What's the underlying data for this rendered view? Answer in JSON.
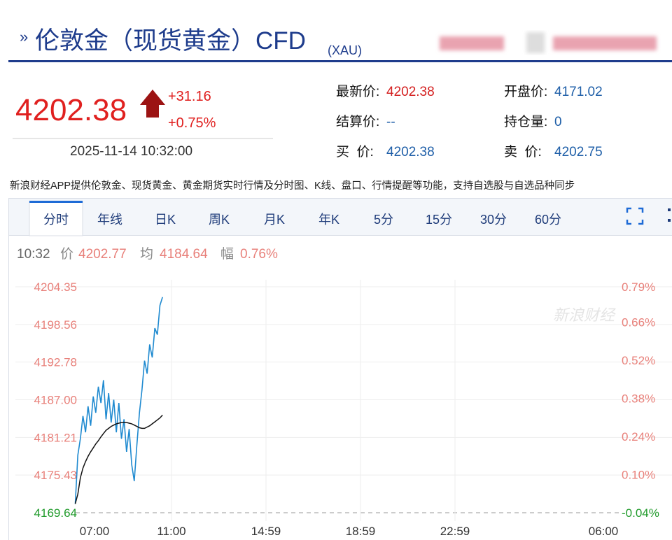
{
  "header": {
    "title": "伦敦金（现货黄金）CFD",
    "symbol": "(XAU)"
  },
  "quote": {
    "price": "4202.38",
    "change": "+31.16",
    "change_pct": "+0.75%",
    "datetime": "2025-11-14 10:32:00",
    "fields": [
      {
        "label": "最新价:",
        "value": "4202.38"
      },
      {
        "label": "结算价:",
        "value": "--"
      },
      {
        "label": "买  价:",
        "value": "4202.38"
      },
      {
        "label": "开盘价:",
        "value": "4171.02"
      },
      {
        "label": "持仓量:",
        "value": "0"
      },
      {
        "label": "卖  价:",
        "value": "4202.75"
      }
    ]
  },
  "description": "新浪财经APP提供伦敦金、现货黄金、黄金期货实时行情及分时图、K线、盘口、行情提醒等功能，支持自选股与自选品种同步",
  "tabs": [
    "分时",
    "年线",
    "日K",
    "周K",
    "月K",
    "年K",
    "5分",
    "15分",
    "30分",
    "60分"
  ],
  "status": {
    "time": "10:32",
    "price_label": "价",
    "price": "4202.77",
    "avg_label": "均",
    "avg": "4184.64",
    "amp_label": "幅",
    "amp": "0.76%"
  },
  "watermark": "新浪财经",
  "chart_data": {
    "type": "line",
    "x": [
      "06:00",
      "06:08",
      "06:16",
      "06:24",
      "06:32",
      "06:40",
      "06:48",
      "06:56",
      "07:04",
      "07:12",
      "07:20",
      "07:28",
      "07:36",
      "07:44",
      "07:52",
      "08:00",
      "08:08",
      "08:16",
      "08:24",
      "08:32",
      "08:40",
      "08:48",
      "08:56",
      "09:04",
      "09:12",
      "09:20",
      "09:28",
      "09:36",
      "09:44",
      "09:52",
      "10:00",
      "10:08",
      "10:16",
      "10:24",
      "10:32"
    ],
    "series": [
      {
        "color": "#1f8ad0",
        "values": [
          4171.0,
          4178.5,
          4181.0,
          4184.5,
          4182.0,
          4186.0,
          4183.0,
          4187.5,
          4185.0,
          4189.0,
          4186.5,
          4190.0,
          4184.0,
          4188.0,
          4183.5,
          4187.0,
          4182.0,
          4186.5,
          4181.0,
          4184.0,
          4179.0,
          4182.5,
          4177.0,
          4174.5,
          4180.0,
          4185.0,
          4188.5,
          4193.0,
          4191.0,
          4195.5,
          4193.5,
          4198.0,
          4197.0,
          4201.5,
          4202.77
        ]
      },
      {
        "color": "#111111",
        "values": [
          4171.0,
          4172.5,
          4175.0,
          4176.5,
          4177.5,
          4178.3,
          4179.0,
          4179.6,
          4180.2,
          4180.7,
          4181.3,
          4181.8,
          4182.3,
          4182.6,
          4182.9,
          4183.1,
          4183.3,
          4183.4,
          4183.5,
          4183.5,
          4183.5,
          4183.4,
          4183.3,
          4183.1,
          4182.9,
          4182.7,
          4182.6,
          4182.6,
          4182.8,
          4183.0,
          4183.3,
          4183.6,
          4183.9,
          4184.2,
          4184.64
        ]
      }
    ],
    "xticks": [
      "07:00",
      "11:00",
      "14:59",
      "18:59",
      "22:59",
      "06:00"
    ],
    "ylim": [
      4169.64,
      4204.35
    ],
    "yticks": [
      4204.35,
      4198.56,
      4192.78,
      {
        "value": 4187,
        "label": "4187.00"
      },
      4181.21,
      4175.43,
      4169.64
    ],
    "y2lim": [
      -0.04,
      0.79
    ],
    "y2ticks": [
      {
        "value": 0.79,
        "label": "0.79%"
      },
      {
        "value": 0.66,
        "label": "0.66%"
      },
      {
        "value": 0.52,
        "label": "0.52%"
      },
      {
        "value": 0.38,
        "label": "0.38%"
      },
      {
        "value": 0.24,
        "label": "0.24%"
      },
      {
        "value": 0.1,
        "label": "0.10%"
      },
      {
        "value": -0.04,
        "label": "-0.04%"
      }
    ],
    "grid": true
  }
}
